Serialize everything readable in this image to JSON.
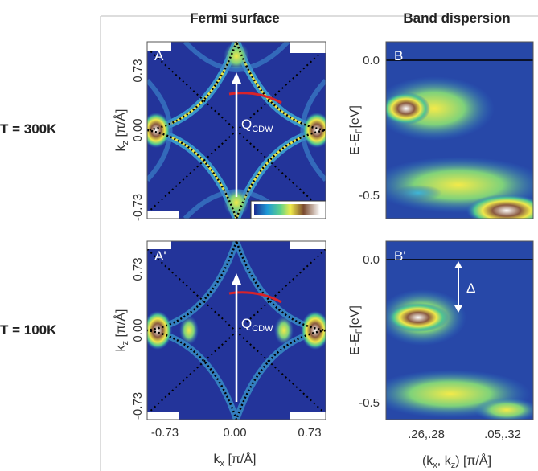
{
  "headers": {
    "fermi": "Fermi surface",
    "band": "Band dispersion"
  },
  "rows": [
    {
      "label": "T = 300K"
    },
    {
      "label": "T = 100K"
    }
  ],
  "panels": {
    "a": "A",
    "b": "B",
    "a2": "A'",
    "b2": "B'"
  },
  "axes": {
    "kz": {
      "main": "k",
      "sub": "z",
      "unit": " [π/Å]"
    },
    "energy": {
      "main": "E-E",
      "sub": "F",
      "unit": "[eV]"
    },
    "kx": {
      "main": "k",
      "sub": "x",
      "unit": " [π/Å]"
    },
    "kxkz": {
      "open": "(k",
      "sub1": "x",
      "mid": ", k",
      "sub2": "z",
      "close": ") [π/Å]"
    }
  },
  "ticks": {
    "kz": [
      "0.73",
      "0.00",
      "-0.73"
    ],
    "energy": [
      "0.0",
      "-0.5"
    ],
    "kx": [
      "-0.73",
      "0.00",
      "0.73"
    ],
    "kxkz": [
      ".26,.28",
      ".05,.32"
    ]
  },
  "annotations": {
    "q": {
      "main": "Q",
      "sub": "CDW"
    },
    "gap": "Δ"
  }
}
